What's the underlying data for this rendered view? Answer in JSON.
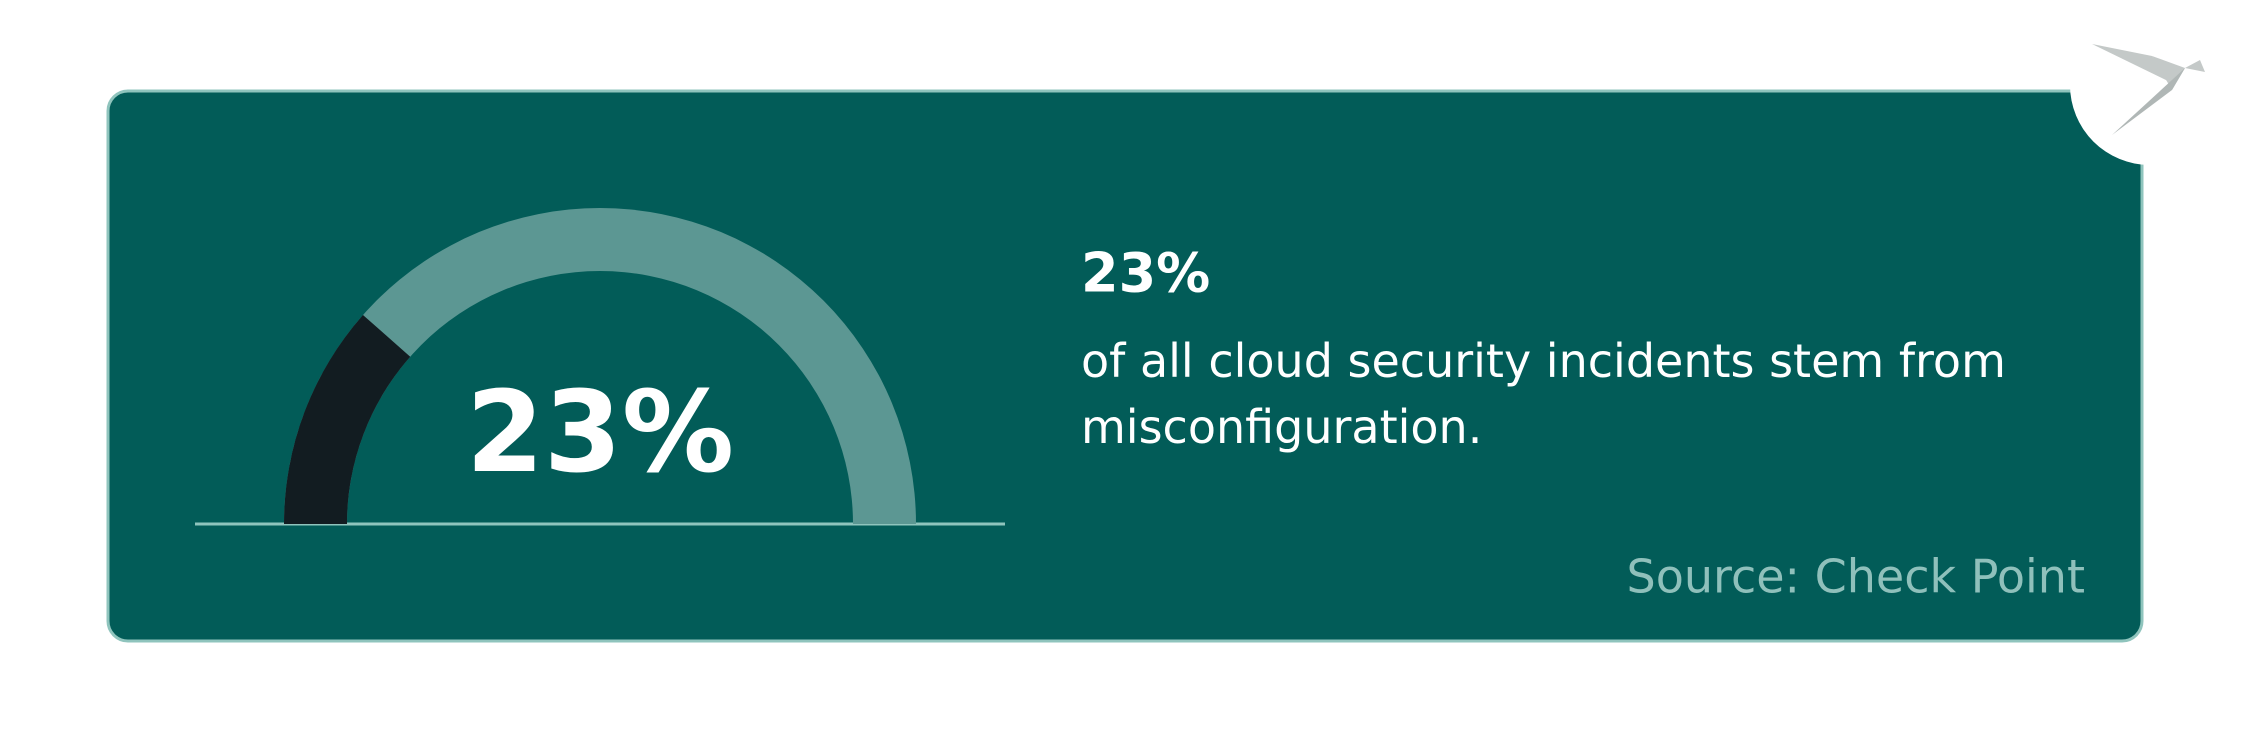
{
  "chart_data": {
    "type": "gauge",
    "values": [
      23
    ],
    "value_labels": [
      "23%"
    ],
    "ylim": [
      0,
      100
    ],
    "color": "#121c21",
    "track_color": "#5c9793",
    "headline": "23%",
    "description": "of all cloud security incidents stem from misconfiguration.",
    "source": "Source: Check Point"
  }
}
